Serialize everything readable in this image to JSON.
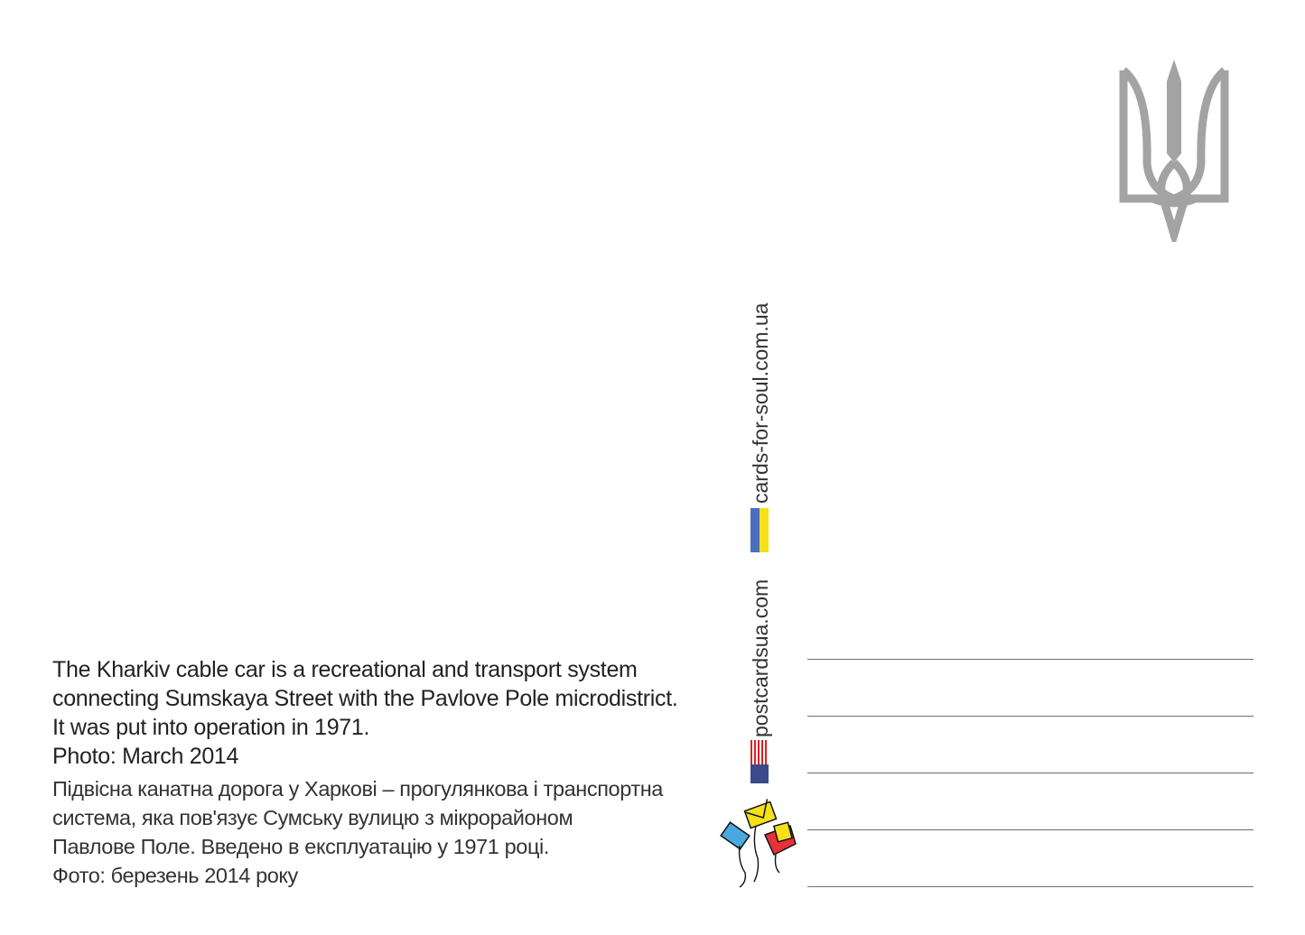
{
  "description_en": [
    "The Kharkiv cable car is a recreational and transport system",
    "connecting Sumskaya Street with the Pavlove Pole microdistrict.",
    "It was put into operation in 1971.",
    "Photo: March 2014"
  ],
  "description_uk": [
    "Підвісна канатна дорога у Харкові – прогулянкова і транспортна",
    "система, яка пов'язує Сумську вулицю з мікрорайоном",
    "Павлове Поле. Введено в експлуатацію у 1971 році.",
    "Фото: березень 2014 року"
  ],
  "sites": {
    "ua_site": "cards-for-soul.com.ua",
    "us_site": "postcardsua.com"
  },
  "colors": {
    "trident": "#a3a3a3",
    "flag_blue": "#4a6fbf",
    "flag_yellow": "#f5e01a",
    "address_line": "#7a6a60"
  },
  "icons": [
    "ukrainian-trident-emblem",
    "ukrainian-flag",
    "us-flag",
    "kite-envelopes-logo"
  ]
}
